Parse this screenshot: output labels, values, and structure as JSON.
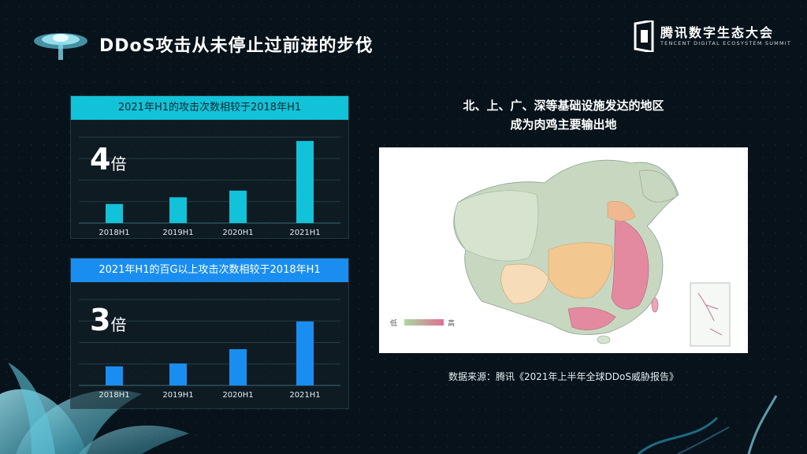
{
  "header": {
    "title": "DDoS攻击从未停止过前进的步伐",
    "brand_name": "腾讯数字生态大会",
    "brand_sub": "TENCENT DIGITAL ECOSYSTEM SUMMIT"
  },
  "panels": [
    {
      "header": "2021年H1的攻击次数相较于2018年H1",
      "multiplier": "4",
      "unit": "倍"
    },
    {
      "header": "2021年H1的百G以上攻击次数相较于2018年H1",
      "multiplier": "3",
      "unit": "倍"
    }
  ],
  "chart_data": [
    {
      "type": "bar",
      "title": "2021年H1的攻击次数相较于2018年H1",
      "categories": [
        "2018H1",
        "2019H1",
        "2020H1",
        "2021H1"
      ],
      "values": [
        1,
        1.35,
        1.7,
        4.3
      ],
      "ylim": [
        0,
        4.5
      ],
      "grid": true,
      "color": "#12c2d8"
    },
    {
      "type": "bar",
      "title": "2021年H1的百G以上攻击次数相较于2018年H1",
      "categories": [
        "2018H1",
        "2019H1",
        "2020H1",
        "2021H1"
      ],
      "values": [
        1,
        1.15,
        1.9,
        3.35
      ],
      "ylim": [
        0,
        4.5
      ],
      "grid": true,
      "color": "#1a8ef0"
    }
  ],
  "map": {
    "title_line1": "北、上、广、深等基础设施发达的地区",
    "title_line2": "成为肉鸡主要输出地",
    "legend_low": "低",
    "legend_high": "高",
    "colors": {
      "low": "#a8d8a0",
      "high": "#e07090"
    }
  },
  "source": "数据来源：腾讯《2021年上半年全球DDoS威胁报告》"
}
